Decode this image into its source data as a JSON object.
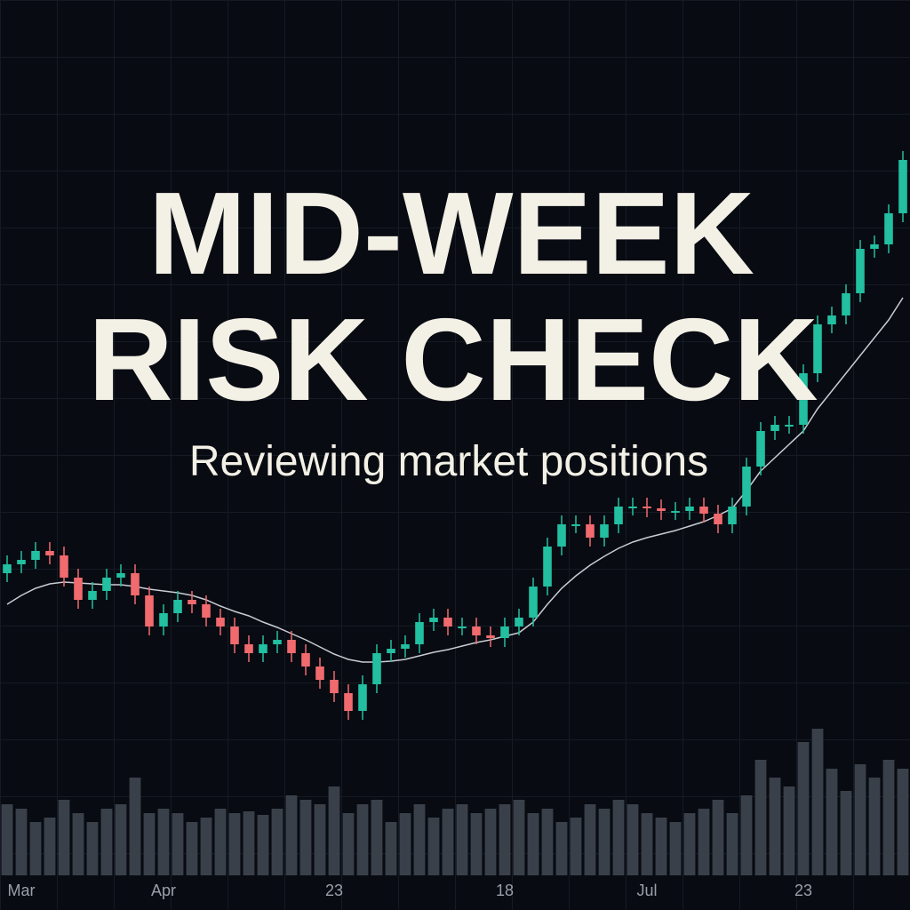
{
  "chart_data": {
    "type": "candlestick",
    "title_lines": [
      "MID-WEEK",
      "RISK CHECK"
    ],
    "subtitle": "Reviewing market positions",
    "categories": [
      null,
      "Mar",
      null,
      null,
      null,
      null,
      null,
      null,
      null,
      null,
      null,
      "Apr",
      null,
      null,
      null,
      null,
      null,
      null,
      null,
      null,
      null,
      null,
      null,
      "23",
      null,
      null,
      null,
      null,
      null,
      null,
      null,
      null,
      null,
      null,
      null,
      "18",
      null,
      null,
      null,
      null,
      null,
      null,
      null,
      null,
      null,
      "Jul",
      null,
      null,
      null,
      null,
      null,
      null,
      null,
      null,
      null,
      null,
      "23",
      null,
      null,
      null,
      null,
      null,
      null,
      null
    ],
    "open": [
      35.5,
      36.5,
      37,
      38,
      37.5,
      35,
      32.5,
      33.5,
      35,
      35.5,
      33,
      29.5,
      31,
      32.5,
      32,
      30.5,
      29.5,
      27.5,
      26.5,
      27.5,
      28,
      26.5,
      25,
      23.5,
      22,
      20,
      23,
      26.5,
      27,
      27.5,
      30,
      30.5,
      29.5,
      29.5,
      28.5,
      28.2,
      29.5,
      30.5,
      34,
      38.5,
      41,
      41,
      39.5,
      41,
      43,
      43,
      42.8,
      42.5,
      42.5,
      43,
      42.2,
      41,
      43,
      47.5,
      51.5,
      52.2,
      52.2,
      58,
      63.5,
      64.5,
      67,
      72,
      72.5,
      76
    ],
    "high": [
      37.5,
      38,
      39,
      39,
      38.5,
      36,
      34.5,
      36,
      36.5,
      36.5,
      34,
      32,
      33.5,
      33.5,
      33,
      31.5,
      30.5,
      28.5,
      28.5,
      29,
      29,
      27.5,
      26,
      24.5,
      23,
      24,
      27.5,
      28,
      28.5,
      31,
      31.5,
      31.5,
      30.5,
      30.5,
      29.5,
      30.5,
      31.5,
      35,
      39.5,
      42,
      42,
      42,
      42,
      44,
      44,
      44,
      43.8,
      43.5,
      44,
      44,
      43.2,
      44,
      48.5,
      52.5,
      53.2,
      53.2,
      59,
      64.5,
      65.5,
      68,
      73,
      73.5,
      77,
      83
    ],
    "low": [
      34.5,
      35.5,
      36,
      36.5,
      34,
      31.5,
      31.5,
      32.5,
      34,
      32,
      28.5,
      28.5,
      30,
      31,
      29.5,
      28.5,
      26.5,
      25.5,
      25.5,
      26.5,
      25.5,
      24,
      22.5,
      21,
      19,
      19,
      22,
      25.5,
      26,
      26.5,
      29,
      28.5,
      28.5,
      27.5,
      27.2,
      27.2,
      28.5,
      29.5,
      33,
      37.5,
      40,
      38.5,
      38.5,
      40,
      42,
      41.8,
      41.5,
      41.5,
      41.5,
      41.2,
      40,
      40,
      42,
      46.5,
      50.5,
      51.2,
      51.2,
      57,
      62.5,
      63.5,
      66,
      71,
      71.5,
      75
    ],
    "close": [
      36.5,
      37,
      38,
      37.5,
      35,
      32.5,
      33.5,
      35,
      35.5,
      33,
      29.5,
      31,
      32.5,
      32,
      30.5,
      29.5,
      27.5,
      26.5,
      27.5,
      28,
      26.5,
      25,
      23.5,
      22,
      20,
      23,
      26.5,
      27,
      27.5,
      30,
      30.5,
      29.5,
      29.5,
      28.5,
      28.2,
      29.5,
      30.5,
      34,
      38.5,
      41,
      41,
      39.5,
      41,
      43,
      43,
      42.8,
      42.5,
      42.5,
      43,
      42.2,
      41,
      43,
      47.5,
      51.5,
      52.2,
      52.2,
      58,
      63.5,
      64.5,
      67,
      72,
      72.5,
      76,
      82
    ],
    "up_color": "#22bfa0",
    "down_color": "#f06a6e",
    "ylim": [
      0,
      100
    ],
    "ma": {
      "color": "#c9ccd2",
      "values": [
        32,
        33,
        33.8,
        34.3,
        34.5,
        34.4,
        34.3,
        34.2,
        34.2,
        34,
        33.7,
        33.5,
        33.3,
        33,
        32.5,
        31.8,
        31.2,
        30.7,
        30,
        29.4,
        28.7,
        28,
        27.2,
        26.4,
        25.8,
        25.5,
        25.5,
        25.6,
        25.8,
        26.2,
        26.6,
        26.9,
        27.3,
        27.7,
        28,
        28.4,
        28.8,
        30,
        32,
        33.8,
        35.2,
        36.4,
        37.4,
        38.3,
        39,
        39.5,
        39.9,
        40.3,
        40.8,
        41.3,
        42,
        42.8,
        44.8,
        47,
        48.5,
        50,
        51.5,
        54,
        56,
        58,
        60,
        62,
        64,
        66.5
      ]
    },
    "volume": {
      "color": "#3a404a",
      "vlim": [
        0,
        180
      ],
      "values": [
        80,
        75,
        60,
        65,
        85,
        70,
        60,
        75,
        80,
        110,
        70,
        75,
        70,
        60,
        65,
        75,
        70,
        72,
        68,
        75,
        90,
        85,
        80,
        100,
        70,
        80,
        85,
        60,
        70,
        80,
        65,
        75,
        80,
        70,
        75,
        80,
        85,
        70,
        75,
        60,
        65,
        80,
        75,
        85,
        80,
        70,
        65,
        60,
        70,
        75,
        85,
        70,
        90,
        130,
        110,
        100,
        150,
        165,
        120,
        95,
        125,
        110,
        130,
        120
      ]
    }
  }
}
